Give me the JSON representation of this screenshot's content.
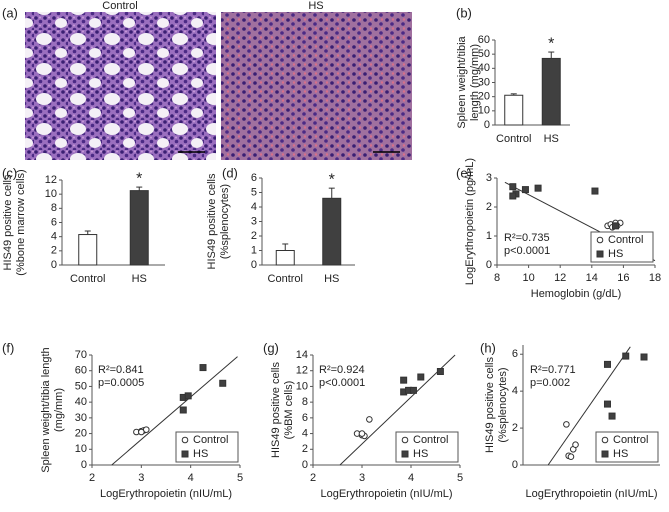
{
  "micrograph": {
    "panel": "(a)",
    "labels": [
      "Control",
      "HS"
    ]
  },
  "chart_data": [
    {
      "type": "bar",
      "panel": "(b)",
      "categories": [
        "Control",
        "HS"
      ],
      "values": [
        21,
        47
      ],
      "errors": [
        1,
        4.5
      ],
      "colors": [
        "#ffffff",
        "#404040"
      ],
      "ylim": [
        0,
        60
      ],
      "yticks": [
        0,
        10,
        20,
        30,
        40,
        50,
        60
      ],
      "ylabel": [
        "Spleen weight/tibia",
        "length (mg/mm)"
      ],
      "annotation": "*"
    },
    {
      "type": "bar",
      "panel": "(c)",
      "categories": [
        "Control",
        "HS"
      ],
      "values": [
        4.3,
        10.5
      ],
      "errors": [
        0.5,
        0.5
      ],
      "colors": [
        "#ffffff",
        "#404040"
      ],
      "ylim": [
        0,
        12
      ],
      "yticks": [
        0,
        2,
        4,
        6,
        8,
        10,
        12
      ],
      "ylabel": [
        "HIS49  positive cells",
        "(%bone marrow cells)"
      ],
      "annotation": "*"
    },
    {
      "type": "bar",
      "panel": "(d)",
      "categories": [
        "Control",
        "HS"
      ],
      "values": [
        1.0,
        4.6
      ],
      "errors": [
        0.45,
        0.7
      ],
      "colors": [
        "#ffffff",
        "#404040"
      ],
      "ylim": [
        0,
        6
      ],
      "yticks": [
        0,
        1,
        2,
        3,
        4,
        5,
        6
      ],
      "ylabel": [
        "HIS49 positive cells",
        "(%splenocytes)"
      ],
      "annotation": "*"
    },
    {
      "type": "scatter",
      "panel": "(e)",
      "xlim": [
        8,
        18
      ],
      "xticks": [
        8,
        10,
        12,
        14,
        16,
        18
      ],
      "ylim": [
        0,
        3
      ],
      "yticks": [
        0,
        1,
        2,
        3
      ],
      "xlabel": "Hemoglobin (g/dL)",
      "ylabel": [
        "LogErythropoietin (pg/mL)"
      ],
      "stats": [
        "R²=0.735",
        "p<0.0001"
      ],
      "series": [
        {
          "name": "Control",
          "marker": "circle",
          "color": "#ffffff",
          "x": [
            15.0,
            15.2,
            15.5,
            15.8,
            15.3,
            15.6
          ],
          "values": [
            1.35,
            1.4,
            1.45,
            1.45,
            1.3,
            1.35
          ]
        },
        {
          "name": "HS",
          "marker": "square",
          "color": "#404040",
          "x": [
            9.0,
            9.2,
            9.0,
            9.8,
            10.6,
            14.2,
            15.5
          ],
          "values": [
            2.7,
            2.45,
            2.38,
            2.6,
            2.65,
            2.55,
            1.35
          ]
        }
      ],
      "fit": {
        "x": [
          8.5,
          18
        ],
        "y": [
          2.85,
          0.15
        ]
      }
    },
    {
      "type": "scatter",
      "panel": "(f)",
      "xlim": [
        2,
        5
      ],
      "xticks": [
        2,
        3,
        4,
        5
      ],
      "ylim": [
        0,
        70
      ],
      "yticks": [
        0,
        10,
        20,
        30,
        40,
        50,
        60,
        70
      ],
      "xlabel": "LogErythropoietin (nIU/mL)",
      "ylabel": [
        "Spleen weight/tibia length",
        "(mg/mm)"
      ],
      "stats": [
        "R²=0.841",
        "p=0.0005"
      ],
      "series": [
        {
          "name": "Control",
          "marker": "circle",
          "color": "#ffffff",
          "x": [
            2.9,
            3.0,
            3.05,
            3.1,
            3.0
          ],
          "values": [
            21,
            21.5,
            22,
            22.5,
            21
          ]
        },
        {
          "name": "HS",
          "marker": "square",
          "color": "#404040",
          "x": [
            3.85,
            3.85,
            3.95,
            4.25,
            4.65
          ],
          "values": [
            35,
            43,
            44,
            62,
            52
          ]
        }
      ],
      "fit": {
        "x": [
          2.4,
          4.95
        ],
        "y": [
          0,
          69
        ]
      }
    },
    {
      "type": "scatter",
      "panel": "(g)",
      "xlim": [
        2,
        5
      ],
      "xticks": [
        2,
        3,
        4,
        5
      ],
      "ylim": [
        0,
        14
      ],
      "yticks": [
        0,
        2,
        4,
        6,
        8,
        10,
        12,
        14
      ],
      "xlabel": "LogErythropoietin (nIU/mL)",
      "ylabel": [
        "HIS49 positive cells",
        "(%BM cells)"
      ],
      "stats": [
        "R²=0.924",
        "p<0.0001"
      ],
      "series": [
        {
          "name": "Control",
          "marker": "circle",
          "color": "#ffffff",
          "x": [
            2.9,
            3.0,
            3.05,
            3.15,
            3.0
          ],
          "values": [
            4.0,
            3.8,
            3.7,
            5.8,
            4.0
          ]
        },
        {
          "name": "HS",
          "marker": "square",
          "color": "#404040",
          "x": [
            3.85,
            3.85,
            3.95,
            4.05,
            4.2,
            4.6
          ],
          "values": [
            10.8,
            9.3,
            9.5,
            9.5,
            11.2,
            11.9
          ]
        }
      ],
      "fit": {
        "x": [
          2.55,
          4.9
        ],
        "y": [
          0,
          14
        ]
      }
    },
    {
      "type": "scatter",
      "panel": "(h)",
      "xlim": [
        2,
        5
      ],
      "ylim": [
        0,
        6.5
      ],
      "yticks": [
        0,
        2,
        4,
        6
      ],
      "xlabel": "LogErythropoietin (nIU/mL)",
      "ylabel": [
        "HIS49 positive cells",
        "(%splenocytes)"
      ],
      "stats": [
        "R²=0.771",
        "p=0.002"
      ],
      "series": [
        {
          "name": "Control",
          "marker": "circle",
          "color": "#ffffff",
          "x": [
            2.95,
            3.0,
            3.05,
            3.1,
            3.15
          ],
          "values": [
            2.2,
            0.5,
            0.45,
            0.85,
            1.1
          ]
        },
        {
          "name": "HS",
          "marker": "square",
          "color": "#404040",
          "x": [
            3.85,
            3.85,
            3.95,
            4.25,
            4.65
          ],
          "values": [
            5.45,
            3.3,
            2.65,
            5.9,
            5.85
          ]
        }
      ],
      "fit": {
        "x": [
          2.55,
          4.35
        ],
        "y": [
          0,
          6.4
        ]
      }
    }
  ]
}
